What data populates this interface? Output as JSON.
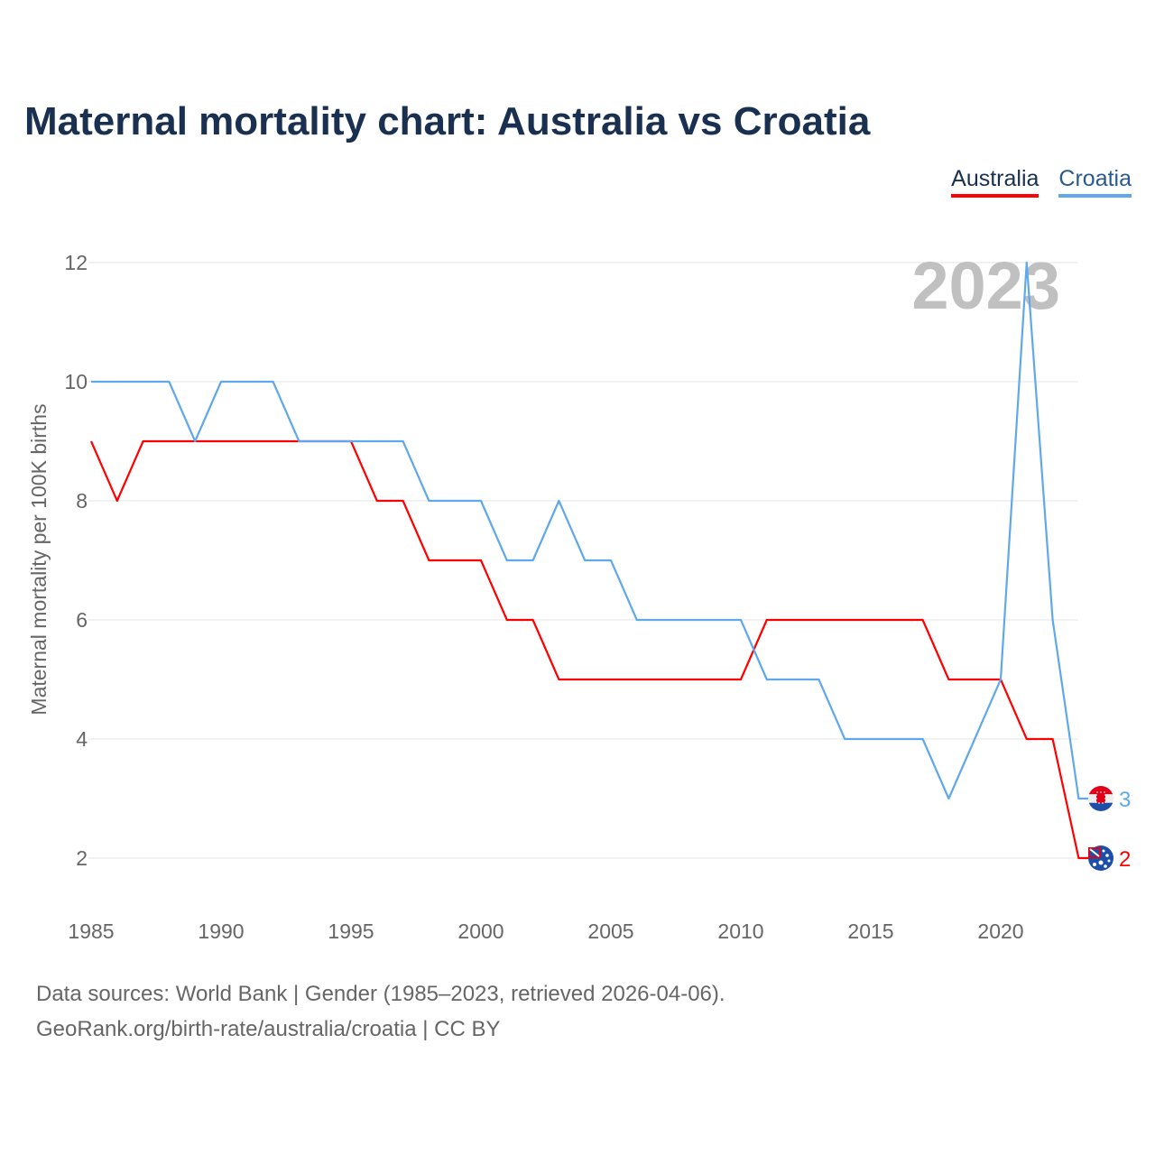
{
  "chart_data": {
    "type": "line",
    "title": "Maternal mortality chart: Australia vs Croatia",
    "xlabel": "",
    "ylabel": "Maternal mortality per 100K births",
    "xlim": [
      1985,
      2023
    ],
    "ylim": [
      1,
      12.5
    ],
    "x_ticks": [
      1985,
      1990,
      1995,
      2000,
      2005,
      2010,
      2015,
      2020
    ],
    "y_ticks": [
      2,
      4,
      6,
      8,
      10,
      12
    ],
    "grid": true,
    "legend_placement": "top-right",
    "year_watermark": "2023",
    "x": [
      1985,
      1986,
      1987,
      1988,
      1989,
      1990,
      1991,
      1992,
      1993,
      1994,
      1995,
      1996,
      1997,
      1998,
      1999,
      2000,
      2001,
      2002,
      2003,
      2004,
      2005,
      2006,
      2007,
      2008,
      2009,
      2010,
      2011,
      2012,
      2013,
      2014,
      2015,
      2016,
      2017,
      2018,
      2019,
      2020,
      2021,
      2022,
      2023
    ],
    "series": [
      {
        "name": "Australia",
        "color": "#ff0000",
        "end_label": "2",
        "values": [
          9,
          8,
          9,
          9,
          9,
          9,
          9,
          9,
          9,
          9,
          9,
          8,
          8,
          7,
          7,
          7,
          6,
          6,
          5,
          5,
          5,
          5,
          5,
          5,
          5,
          5,
          6,
          6,
          6,
          6,
          6,
          6,
          6,
          5,
          5,
          5,
          4,
          4,
          2
        ]
      },
      {
        "name": "Croatia",
        "color": "#5fa8ec",
        "end_label": "3",
        "values": [
          10,
          10,
          10,
          10,
          9,
          10,
          10,
          10,
          9,
          9,
          9,
          9,
          9,
          8,
          8,
          8,
          7,
          7,
          8,
          7,
          7,
          6,
          6,
          6,
          6,
          6,
          5,
          5,
          5,
          4,
          4,
          4,
          4,
          3,
          4,
          5,
          12,
          6,
          3
        ]
      }
    ]
  },
  "footer": {
    "line1": "Data sources: World Bank | Gender (1985–2023, retrieved 2026-04-06).",
    "line2": "GeoRank.org/birth-rate/australia/croatia | CC BY"
  }
}
